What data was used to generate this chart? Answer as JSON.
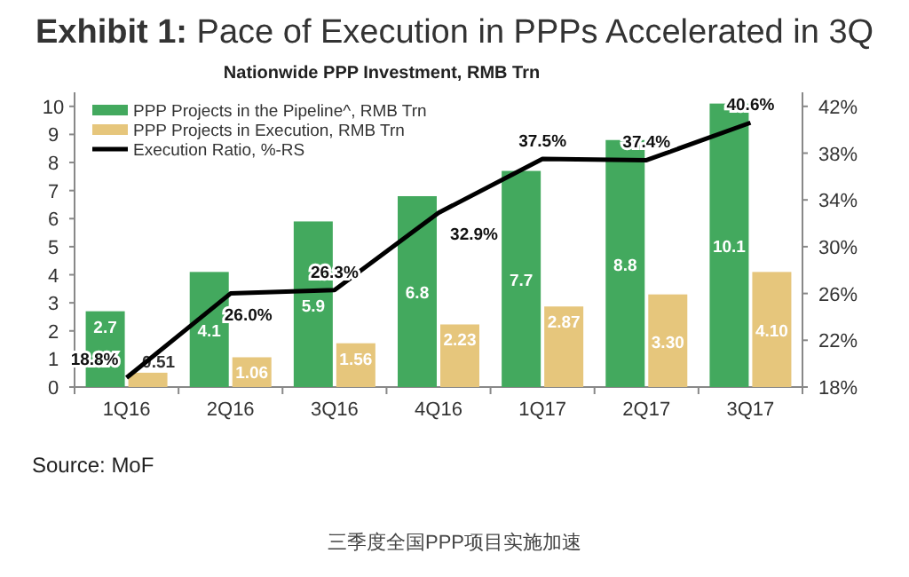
{
  "chart_data": {
    "type": "bar",
    "title": "**Exhibit 1:** Pace of Execution in PPPs Accelerated in 3Q",
    "subtitle": "Nationwide PPP Investment, RMB Trn",
    "categories": [
      "1Q16",
      "2Q16",
      "3Q16",
      "4Q16",
      "1Q17",
      "2Q17",
      "3Q17"
    ],
    "series": [
      {
        "name": "PPP Projects in the Pipeline^, RMB Trn",
        "color": "#43a95e",
        "values": [
          2.7,
          4.1,
          5.9,
          6.8,
          7.7,
          8.8,
          10.1
        ],
        "value_labels": [
          "2.7",
          "4.1",
          "5.9",
          "6.8",
          "7.7",
          "8.8",
          "10.1"
        ]
      },
      {
        "name": "PPP Projects in Execution, RMB Trn",
        "color": "#e6c67c",
        "values": [
          0.51,
          1.06,
          1.56,
          2.23,
          2.87,
          3.3,
          4.1
        ],
        "value_labels": [
          "0.51",
          "1.06",
          "1.56",
          "2.23",
          "2.87",
          "3.30",
          "4.10"
        ]
      },
      {
        "name": "Execution Ratio, %-RS",
        "color": "#000000",
        "type": "line",
        "axis": "y2",
        "values": [
          18.8,
          26.0,
          26.3,
          32.9,
          37.5,
          37.4,
          40.6
        ],
        "value_labels": [
          "18.8%",
          "26.0%",
          "26.3%",
          "32.9%",
          "37.5%",
          "37.4%",
          "40.6%"
        ]
      }
    ],
    "ylim": [
      0,
      10.5
    ],
    "yticks": [
      0,
      1,
      2,
      3,
      4,
      5,
      6,
      7,
      8,
      9,
      10
    ],
    "y2lim": [
      18,
      43.2
    ],
    "y2ticks": [
      {
        "value": 18,
        "label": "18%"
      },
      {
        "value": 22,
        "label": "22%"
      },
      {
        "value": 26,
        "label": "26%"
      },
      {
        "value": 30,
        "label": "30%"
      },
      {
        "value": 34,
        "label": "34%"
      },
      {
        "value": 38,
        "label": "38%"
      },
      {
        "value": 42,
        "label": "42%"
      }
    ],
    "legend": "top left",
    "grid": false,
    "annotations": [
      "Source: MoF",
      "三季度全国PPP项目实施加速"
    ]
  }
}
